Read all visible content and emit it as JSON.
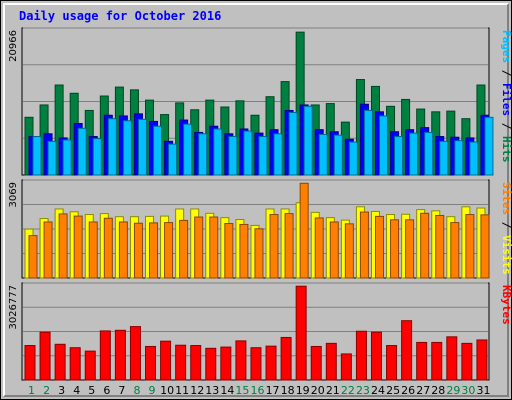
{
  "chart_data": [
    {
      "type": "bar",
      "title": "Daily usage for October 2016",
      "max_label": "20966",
      "ylim": [
        0,
        20966
      ],
      "categories": [
        "1",
        "2",
        "3",
        "4",
        "5",
        "6",
        "7",
        "8",
        "9",
        "10",
        "11",
        "12",
        "13",
        "14",
        "15",
        "16",
        "17",
        "18",
        "19",
        "20",
        "21",
        "22",
        "23",
        "24",
        "25",
        "26",
        "27",
        "28",
        "29",
        "30",
        "31"
      ],
      "weekend_days": [
        "1",
        "2",
        "8",
        "9",
        "15",
        "16",
        "22",
        "23",
        "29",
        "30"
      ],
      "series": [
        {
          "name": "Hits",
          "color": "#008040",
          "values": [
            8400,
            10200,
            13100,
            11900,
            9400,
            11500,
            12800,
            12400,
            10900,
            8800,
            10500,
            9500,
            10900,
            9900,
            10800,
            8700,
            11400,
            13600,
            20800,
            10200,
            10400,
            7700,
            13900,
            12900,
            10000,
            11000,
            9600,
            9200,
            9300,
            8200,
            13100
          ]
        },
        {
          "name": "Files",
          "color": "#0000ff",
          "values": [
            5600,
            6000,
            5400,
            7500,
            5600,
            8700,
            8600,
            8900,
            7800,
            4900,
            8000,
            6200,
            7100,
            6000,
            6700,
            6100,
            6600,
            9400,
            10200,
            6600,
            6300,
            5200,
            10300,
            9200,
            6300,
            6600,
            6900,
            5600,
            5500,
            5400,
            8700
          ]
        },
        {
          "name": "Pages",
          "color": "#00c0ff",
          "values": [
            5600,
            4900,
            5100,
            6800,
            5300,
            8200,
            7900,
            8100,
            7100,
            4500,
            7400,
            6000,
            6700,
            5600,
            6400,
            5600,
            6000,
            9100,
            10000,
            5900,
            5800,
            4800,
            9400,
            8600,
            5600,
            6100,
            6200,
            4900,
            5000,
            4800,
            8400
          ]
        }
      ]
    },
    {
      "type": "bar",
      "max_label": "3069",
      "ylim": [
        0,
        3069
      ],
      "categories": [
        "1",
        "2",
        "3",
        "4",
        "5",
        "6",
        "7",
        "8",
        "9",
        "10",
        "11",
        "12",
        "13",
        "14",
        "15",
        "16",
        "17",
        "18",
        "19",
        "20",
        "21",
        "22",
        "23",
        "24",
        "25",
        "26",
        "27",
        "28",
        "29",
        "30",
        "31"
      ],
      "series": [
        {
          "name": "Visits",
          "color": "#ffff00",
          "values": [
            1580,
            1920,
            2230,
            2140,
            2050,
            2080,
            1980,
            1980,
            1990,
            2000,
            2230,
            2230,
            2090,
            1950,
            1890,
            1700,
            2230,
            2230,
            2430,
            2120,
            1950,
            1870,
            2300,
            2150,
            2050,
            2060,
            2210,
            2170,
            1980,
            2300,
            2260
          ]
        },
        {
          "name": "Sites",
          "color": "#ff8000",
          "values": [
            1370,
            1810,
            2070,
            2000,
            1810,
            1930,
            1810,
            1770,
            1780,
            1790,
            1860,
            1970,
            1970,
            1760,
            1730,
            1590,
            2050,
            2080,
            3060,
            1940,
            1810,
            1750,
            2130,
            1990,
            1880,
            1880,
            2090,
            2020,
            1790,
            2050,
            2040
          ]
        }
      ]
    },
    {
      "type": "bar",
      "max_label": "3026777",
      "ylim": [
        0,
        3026777
      ],
      "categories": [
        "1",
        "2",
        "3",
        "4",
        "5",
        "6",
        "7",
        "8",
        "9",
        "10",
        "11",
        "12",
        "13",
        "14",
        "15",
        "16",
        "17",
        "18",
        "19",
        "20",
        "21",
        "22",
        "23",
        "24",
        "25",
        "26",
        "27",
        "28",
        "29",
        "30",
        "31"
      ],
      "series": [
        {
          "name": "KBytes",
          "color": "#ff0000",
          "values": [
            1110000,
            1540000,
            1150000,
            1040000,
            930000,
            1580000,
            1600000,
            1720000,
            1080000,
            1250000,
            1120000,
            1110000,
            1020000,
            1060000,
            1260000,
            1040000,
            1090000,
            1370000,
            3020000,
            1080000,
            1180000,
            840000,
            1570000,
            1540000,
            1110000,
            1910000,
            1210000,
            1210000,
            1390000,
            1180000,
            1290000
          ]
        }
      ]
    }
  ]
}
